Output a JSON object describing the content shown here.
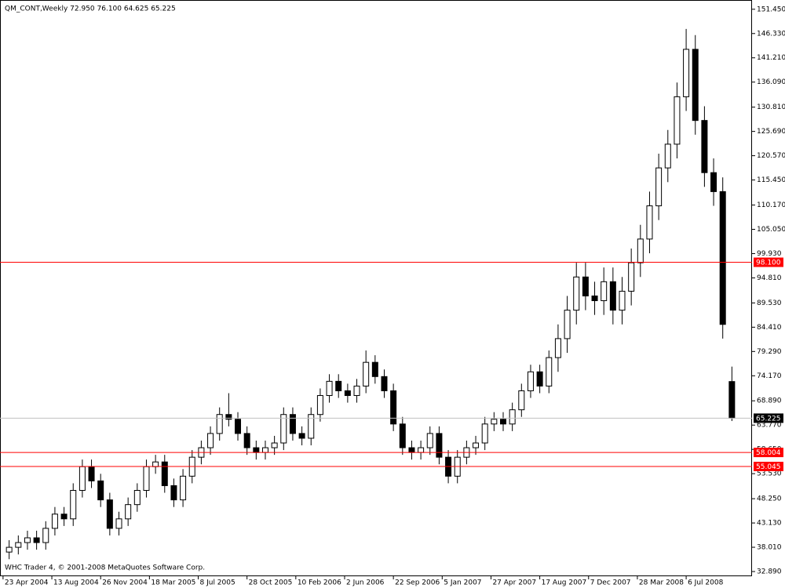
{
  "chart_data": {
    "type": "candlestick",
    "title": "QM_CONT,Weekly  72.950 76.100 64.625 65.225",
    "footer": "WHC Trader 4, © 2001-2008 MetaQuotes Software Corp.",
    "x": [
      2,
      5,
      8,
      11,
      14,
      17,
      20,
      23,
      26,
      29,
      32,
      35,
      38,
      41,
      44,
      47,
      50,
      53,
      56,
      59,
      62,
      65,
      68,
      71,
      74,
      77,
      80,
      83,
      86,
      89,
      92,
      95,
      98,
      101,
      104,
      107,
      110,
      113,
      116,
      119,
      122,
      125,
      128,
      131,
      134,
      137,
      140,
      143,
      146,
      149,
      152,
      155,
      158,
      161,
      164,
      167,
      170,
      173,
      176,
      179,
      182,
      185,
      188,
      191,
      194,
      197,
      200,
      203,
      206,
      209,
      212,
      215,
      218,
      221,
      224,
      227,
      230,
      233,
      236,
      239
    ],
    "open": [
      37,
      38,
      39,
      40,
      39,
      42,
      45,
      44,
      50,
      55,
      52,
      48,
      42,
      44,
      47,
      50,
      55,
      56,
      51,
      48,
      53,
      57,
      59,
      62,
      66,
      65,
      62,
      59,
      58,
      59,
      60,
      66,
      62,
      61,
      66,
      70,
      73,
      71,
      70,
      72,
      77,
      74,
      71,
      64,
      59,
      58,
      59,
      62,
      57,
      53,
      57,
      59,
      60,
      64,
      65,
      64,
      67,
      71,
      75,
      72,
      78,
      82,
      88,
      95,
      91,
      90,
      94,
      88,
      92,
      98,
      103,
      110,
      118,
      123,
      133,
      143,
      128,
      117,
      113,
      72.95
    ],
    "high": [
      39.5,
      40.5,
      41.5,
      41.5,
      43.5,
      46.5,
      46.5,
      51.5,
      56.5,
      56.5,
      53.5,
      49.5,
      45.5,
      48.5,
      51.5,
      56.5,
      57.5,
      57.5,
      52.5,
      54.5,
      58.5,
      60.5,
      63.5,
      67.5,
      70.5,
      66.5,
      63.5,
      60.5,
      60.5,
      61.5,
      67.5,
      67.5,
      63.5,
      67.5,
      71.5,
      74.5,
      74.5,
      72.5,
      73.5,
      79.5,
      78.5,
      75.5,
      72.5,
      65.5,
      60.5,
      60.5,
      63.5,
      63.5,
      58.5,
      58.5,
      60.5,
      61.5,
      65.5,
      66.5,
      66.5,
      68.5,
      72.5,
      76.5,
      76.5,
      79.5,
      85,
      91,
      98,
      98,
      94,
      97,
      97,
      95,
      101,
      106,
      113,
      121,
      126,
      136,
      147.3,
      146,
      131,
      120,
      116,
      76.1
    ],
    "low": [
      35.5,
      36.5,
      37.5,
      37.5,
      37.5,
      40.5,
      42.5,
      42.5,
      48.5,
      50.5,
      46.5,
      40.5,
      40.5,
      42.5,
      45.5,
      48.5,
      53.5,
      49.5,
      46.5,
      46.5,
      51.5,
      55.5,
      57.5,
      60.5,
      63.5,
      60.5,
      57.5,
      56.5,
      56.5,
      57.5,
      58.5,
      60.5,
      59.5,
      59.5,
      64.5,
      68.5,
      69.5,
      68.5,
      68.5,
      70.5,
      72.5,
      69.5,
      62.5,
      57.5,
      56.5,
      56.5,
      57.5,
      55.5,
      51.5,
      51.5,
      55.5,
      57.5,
      58.5,
      62.5,
      62.5,
      62.5,
      65.5,
      69.5,
      70.5,
      70.5,
      75,
      79,
      85,
      88,
      87,
      87,
      85,
      85,
      89,
      95,
      100,
      107,
      115,
      120,
      130,
      125,
      114,
      110,
      82,
      64.625
    ],
    "close": [
      38,
      39,
      40,
      39,
      42,
      45,
      44,
      50,
      55,
      52,
      48,
      42,
      44,
      47,
      50,
      55,
      56,
      51,
      48,
      53,
      57,
      59,
      62,
      66,
      65,
      62,
      59,
      58,
      59,
      60,
      66,
      62,
      61,
      66,
      70,
      73,
      71,
      70,
      72,
      77,
      74,
      71,
      64,
      59,
      58,
      59,
      62,
      57,
      53,
      57,
      59,
      60,
      64,
      65,
      64,
      67,
      71,
      75,
      72,
      78,
      82,
      88,
      95,
      91,
      90,
      94,
      88,
      92,
      98,
      103,
      110,
      118,
      123,
      133,
      143,
      128,
      117,
      113,
      85,
      65.225
    ],
    "bull_color": "#ffffff",
    "bear_color": "#000000",
    "xlim": [
      -1,
      245.6
    ],
    "xticks": [
      {
        "value": 0,
        "label": "23 Apr 2004"
      },
      {
        "value": 16,
        "label": "13 Aug 2004"
      },
      {
        "value": 32,
        "label": "26 Nov 2004"
      },
      {
        "value": 48,
        "label": "18 Mar 2005"
      },
      {
        "value": 64,
        "label": "8 Jul 2005"
      },
      {
        "value": 80,
        "label": "28 Oct 2005"
      },
      {
        "value": 96,
        "label": "10 Feb 2006"
      },
      {
        "value": 112,
        "label": "2 Jun 2006"
      },
      {
        "value": 128,
        "label": "22 Sep 2006"
      },
      {
        "value": 144,
        "label": "5 Jan 2007"
      },
      {
        "value": 160,
        "label": "27 Apr 2007"
      },
      {
        "value": 176,
        "label": "17 Aug 2007"
      },
      {
        "value": 192,
        "label": "7 Dec 2007"
      },
      {
        "value": 208,
        "label": "28 Mar 2008"
      },
      {
        "value": 224,
        "label": "6 Jul 2008"
      }
    ],
    "ylim": [
      31.9,
      153.4
    ],
    "yticks": [
      {
        "value": 151.45,
        "label": "151.450"
      },
      {
        "value": 146.33,
        "label": "146.330"
      },
      {
        "value": 141.21,
        "label": "141.210"
      },
      {
        "value": 136.09,
        "label": "136.090"
      },
      {
        "value": 130.81,
        "label": "130.810"
      },
      {
        "value": 125.69,
        "label": "125.690"
      },
      {
        "value": 120.57,
        "label": "120.570"
      },
      {
        "value": 115.45,
        "label": "115.450"
      },
      {
        "value": 110.17,
        "label": "110.170"
      },
      {
        "value": 105.05,
        "label": "105.050"
      },
      {
        "value": 99.93,
        "label": "99.930"
      },
      {
        "value": 94.81,
        "label": "94.810"
      },
      {
        "value": 89.53,
        "label": "89.530"
      },
      {
        "value": 84.41,
        "label": "84.410"
      },
      {
        "value": 79.29,
        "label": "79.290"
      },
      {
        "value": 74.17,
        "label": "74.170"
      },
      {
        "value": 68.89,
        "label": "68.890"
      },
      {
        "value": 63.77,
        "label": "63.770"
      },
      {
        "value": 58.65,
        "label": "58.650"
      },
      {
        "value": 53.53,
        "label": "53.530"
      },
      {
        "value": 48.25,
        "label": "48.250"
      },
      {
        "value": 43.13,
        "label": "43.130"
      },
      {
        "value": 38.01,
        "label": "38.010"
      },
      {
        "value": 32.89,
        "label": "32.890"
      }
    ],
    "hlines": [
      {
        "value": 98.1,
        "label": "98.100",
        "color": "#ff0000"
      },
      {
        "value": 65.225,
        "label": "65.225",
        "color": "#c0c0c0"
      },
      {
        "value": 58.004,
        "label": "58.004",
        "color": "#ff0000"
      },
      {
        "value": 55.045,
        "label": "55.045",
        "color": "#ff0000"
      }
    ]
  }
}
